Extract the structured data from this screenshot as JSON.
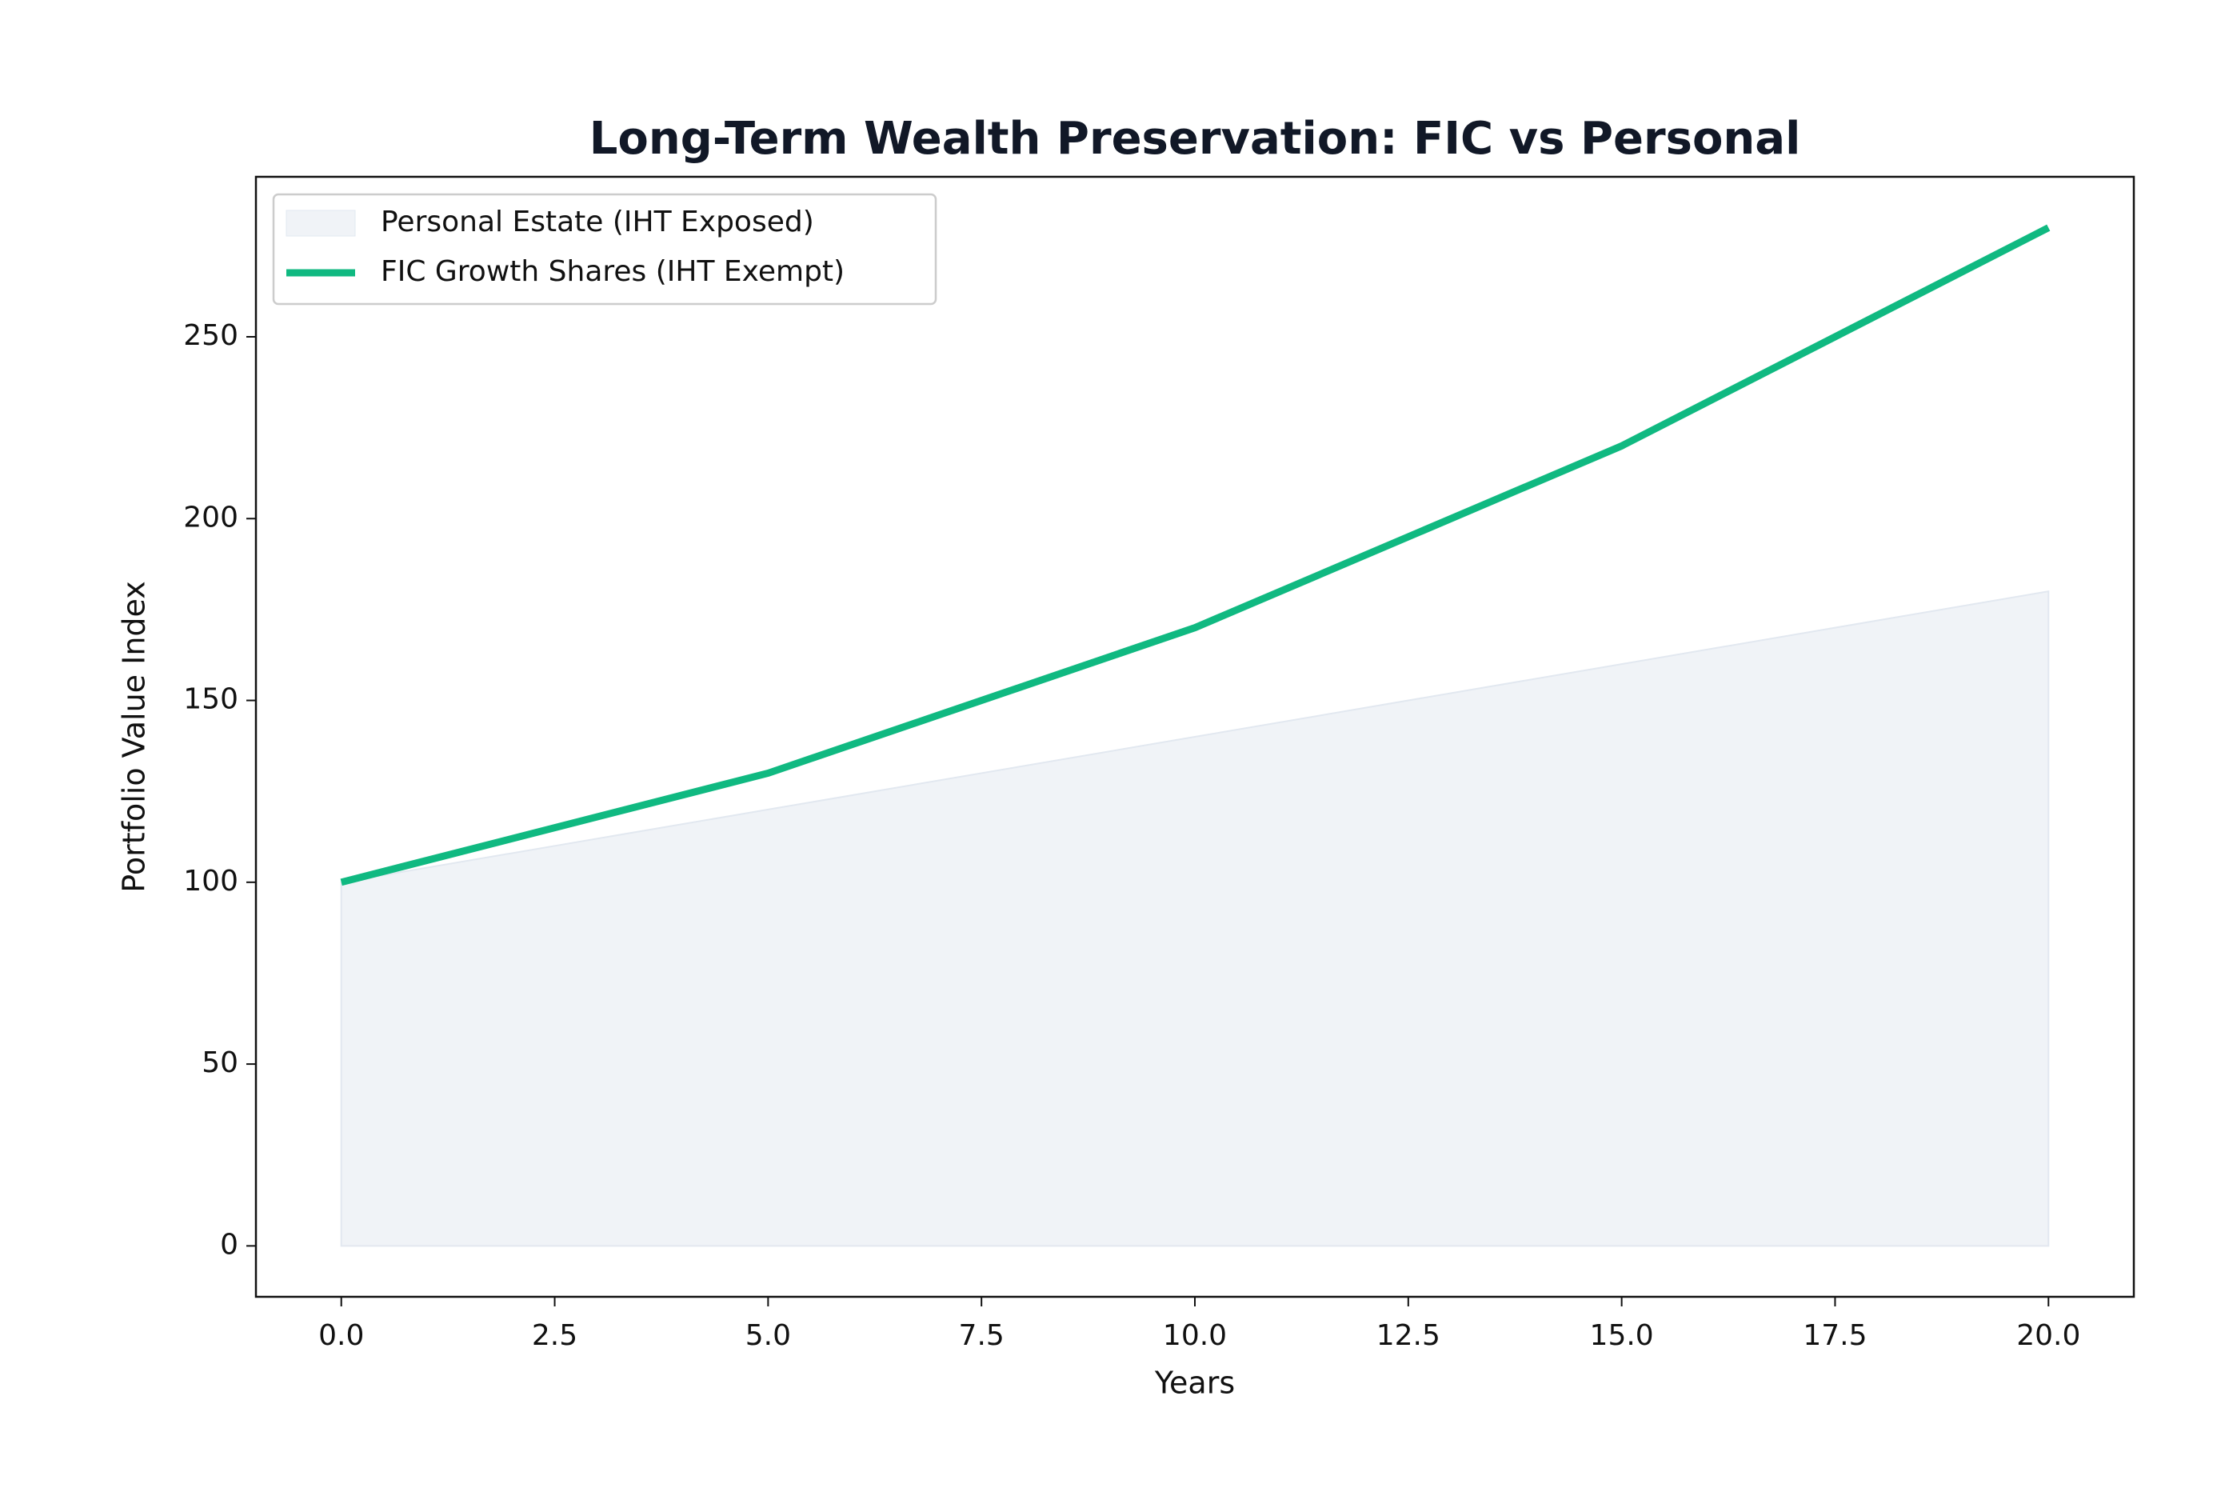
{
  "chart_data": {
    "type": "line",
    "title": "Long-Term Wealth Preservation: FIC vs Personal",
    "x_label": "Years",
    "y_label": "Portfolio Value Index",
    "x": [
      0,
      5,
      10,
      15,
      20
    ],
    "series": [
      {
        "name": "Personal Estate (IHT Exposed)",
        "style": "area",
        "color": "#e2e8f0",
        "values": [
          100,
          120,
          140,
          160,
          180
        ]
      },
      {
        "name": "FIC Growth Shares (IHT Exempt)",
        "style": "line",
        "color": "#10b981",
        "values": [
          100,
          130,
          170,
          220,
          280
        ]
      }
    ],
    "xlim": [
      -1,
      21
    ],
    "ylim": [
      -14,
      294
    ],
    "xticks": [
      {
        "value": 0,
        "label": "0.0"
      },
      {
        "value": 2.5,
        "label": "2.5"
      },
      {
        "value": 5,
        "label": "5.0"
      },
      {
        "value": 7.5,
        "label": "7.5"
      },
      {
        "value": 10,
        "label": "10.0"
      },
      {
        "value": 12.5,
        "label": "12.5"
      },
      {
        "value": 15,
        "label": "15.0"
      },
      {
        "value": 17.5,
        "label": "17.5"
      },
      {
        "value": 20,
        "label": "20.0"
      }
    ],
    "yticks": [
      0,
      50,
      100,
      150,
      200,
      250
    ],
    "grid": false,
    "legend": "upper-left"
  }
}
